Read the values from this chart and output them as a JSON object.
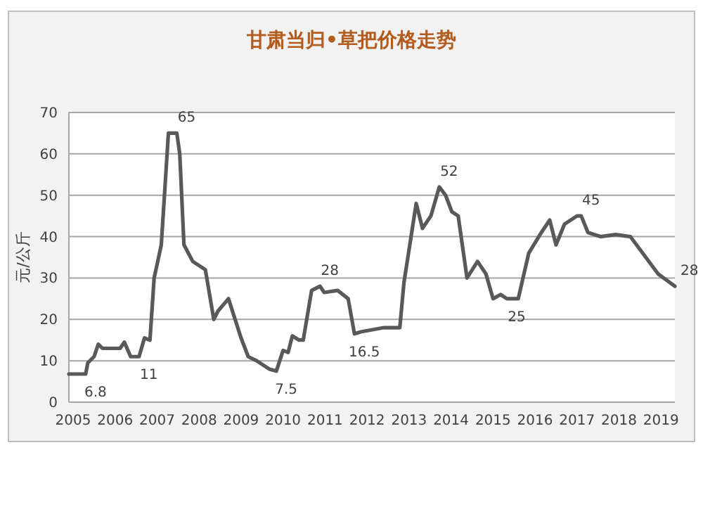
{
  "chart_data": {
    "type": "line",
    "title": "甘肃当归•草把价格走势",
    "ylabel": "元/公斤",
    "x": [
      2004.9,
      2005.3,
      2005.35,
      2005.5,
      2005.6,
      2005.7,
      2006.12,
      2006.22,
      2006.37,
      2006.57,
      2006.7,
      2006.83,
      2006.93,
      2007.1,
      2007.27,
      2007.47,
      2007.54,
      2007.64,
      2007.85,
      2008.15,
      2008.35,
      2008.45,
      2008.7,
      2009.0,
      2009.17,
      2009.37,
      2009.67,
      2009.84,
      2010.0,
      2010.12,
      2010.22,
      2010.38,
      2010.48,
      2010.68,
      2010.88,
      2010.98,
      2011.3,
      2011.55,
      2011.7,
      2011.85,
      2012.4,
      2012.78,
      2012.88,
      2013.17,
      2013.32,
      2013.52,
      2013.72,
      2013.87,
      2014.02,
      2014.17,
      2014.38,
      2014.63,
      2014.83,
      2015.0,
      2015.18,
      2015.33,
      2015.6,
      2015.85,
      2016.15,
      2016.35,
      2016.5,
      2016.7,
      2017.0,
      2017.1,
      2017.26,
      2017.56,
      2017.92,
      2018.27,
      2018.93,
      2019.33
    ],
    "values": [
      6.8,
      6.8,
      9.5,
      11,
      14,
      13,
      13,
      14.5,
      11,
      11,
      15.5,
      15,
      30,
      38,
      65,
      65,
      60,
      38,
      34,
      32,
      20,
      22,
      25,
      15.5,
      11,
      10,
      8,
      7.5,
      12.5,
      12,
      16,
      15,
      15,
      27,
      28,
      26.5,
      27,
      25,
      16.5,
      17,
      18,
      18,
      29,
      48,
      42,
      45,
      52,
      50,
      46,
      45,
      30,
      34,
      31,
      25,
      26,
      25,
      25,
      36,
      41,
      44,
      38,
      43,
      45,
      45,
      41,
      40,
      40.5,
      40,
      31,
      28
    ],
    "color": "#595959",
    "ylim": [
      0,
      70
    ],
    "yticks": [
      0,
      10,
      20,
      30,
      40,
      50,
      60,
      70
    ],
    "xlim": [
      2004.9,
      2019.33
    ],
    "xticks": [
      2005,
      2006,
      2007,
      2008,
      2009,
      2010,
      2011,
      2012,
      2013,
      2014,
      2015,
      2016,
      2017,
      2018,
      2019
    ],
    "grid": "y",
    "marker": "none",
    "line_style": "solid",
    "annotations": [
      {
        "text": "6.8",
        "x": 2005.3,
        "y": 6.8
      },
      {
        "text": "11",
        "x": 2006.57,
        "y": 11
      },
      {
        "text": "65",
        "x": 2007.47,
        "y": 65
      },
      {
        "text": "7.5",
        "x": 2009.84,
        "y": 7.5
      },
      {
        "text": "28",
        "x": 2010.88,
        "y": 28
      },
      {
        "text": "16.5",
        "x": 2011.7,
        "y": 16.5
      },
      {
        "text": "52",
        "x": 2013.72,
        "y": 52
      },
      {
        "text": "25",
        "x": 2015.33,
        "y": 25
      },
      {
        "text": "45",
        "x": 2017.1,
        "y": 45
      },
      {
        "text": "28",
        "x": 2019.33,
        "y": 28
      }
    ]
  }
}
